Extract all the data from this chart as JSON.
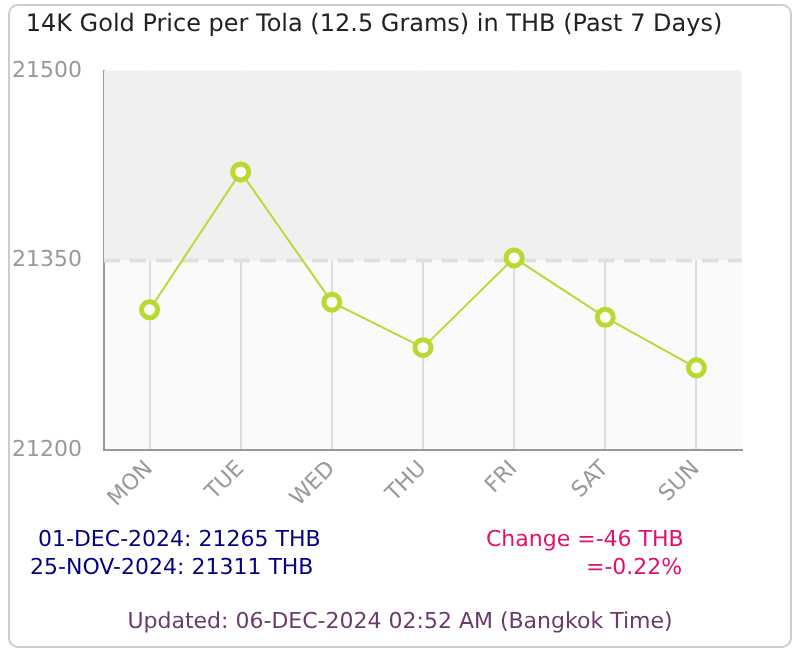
{
  "chart_data": {
    "type": "line",
    "title": "14K Gold Price per Tola (12.5 Grams) in THB (Past 7 Days)",
    "categories": [
      "MON",
      "TUE",
      "WED",
      "THU",
      "FRI",
      "SAT",
      "SUN"
    ],
    "series": [
      {
        "color": "#b8d930",
        "values": [
          21311,
          21420,
          21317,
          21281,
          21352,
          21305,
          21265
        ]
      }
    ],
    "ylim": [
      21200,
      21500
    ],
    "yticks": [
      21200,
      21350,
      21500
    ],
    "grid": "x",
    "ref_lines": [
      {
        "axis": "y",
        "value": 21350,
        "color": "#e0e0e0",
        "line_style": "dashed"
      }
    ],
    "marker": "circle",
    "legend": false,
    "bands": [
      {
        "axis": "y",
        "from": 21350,
        "to": 21500,
        "color": "#f0f0f0"
      }
    ],
    "annotations": [
      "01-DEC-2024: 21265 THB",
      "25-NOV-2024: 21311 THB",
      "Change =-46 THB",
      "=-0.22%",
      "Updated: 06-DEC-2024 02:52 AM (Bangkok Time)"
    ]
  }
}
